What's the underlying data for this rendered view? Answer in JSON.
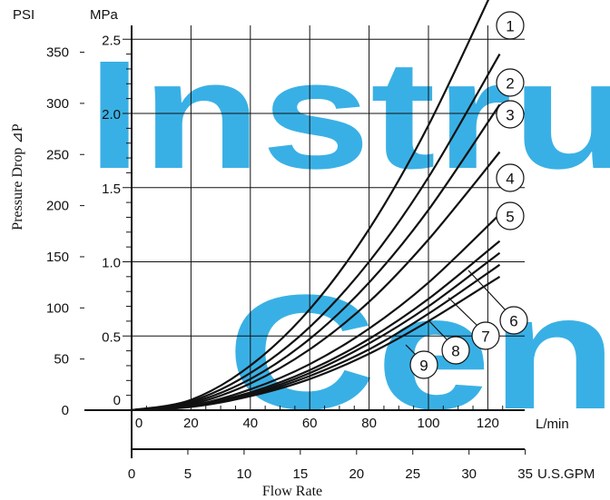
{
  "watermark": {
    "line1": "Instru",
    "line2": "Cen",
    "color": "#29aae3"
  },
  "chart_data": {
    "type": "line",
    "title": "",
    "xlabel": "Flow Rate",
    "ylabel": "Pressure Drop ⊿P",
    "x_primary": {
      "unit": "L/min",
      "ticks": [
        "0",
        "20",
        "40",
        "60",
        "80",
        "100",
        "120"
      ],
      "range": [
        0,
        125
      ]
    },
    "x_secondary": {
      "unit": "U.S.GPM",
      "ticks": [
        "0",
        "5",
        "10",
        "15",
        "20",
        "25",
        "30",
        "35"
      ],
      "range": [
        0,
        35
      ]
    },
    "y_primary": {
      "unit": "PSI",
      "ticks": [
        "0",
        "50",
        "100",
        "150",
        "200",
        "250",
        "300",
        "350"
      ],
      "range": [
        0,
        370
      ]
    },
    "y_secondary": {
      "unit": "MPa",
      "ticks": [
        "0",
        "0.5",
        "1.0",
        "1.5",
        "2.0",
        "2.5"
      ],
      "range": [
        0,
        2.55
      ]
    },
    "grid": true,
    "series": [
      {
        "label": "1",
        "x": [
          0,
          20,
          40,
          60,
          80,
          100,
          124
        ],
        "y_mpa": [
          0,
          0.07,
          0.3,
          0.68,
          1.22,
          1.92,
          2.93
        ]
      },
      {
        "label": "2",
        "x": [
          0,
          20,
          40,
          60,
          80,
          100,
          124
        ],
        "y_mpa": [
          0,
          0.06,
          0.25,
          0.56,
          1.0,
          1.57,
          2.4
        ]
      },
      {
        "label": "3",
        "x": [
          0,
          20,
          40,
          60,
          80,
          100,
          124
        ],
        "y_mpa": [
          0,
          0.05,
          0.21,
          0.48,
          0.86,
          1.35,
          2.06
        ]
      },
      {
        "label": "4",
        "x": [
          0,
          20,
          40,
          60,
          80,
          100,
          124
        ],
        "y_mpa": [
          0,
          0.04,
          0.18,
          0.41,
          0.73,
          1.15,
          1.74
        ]
      },
      {
        "label": "5",
        "x": [
          0,
          20,
          40,
          60,
          80,
          100,
          124
        ],
        "y_mpa": [
          0,
          0.03,
          0.14,
          0.31,
          0.55,
          0.86,
          1.32
        ]
      },
      {
        "label": "6",
        "x": [
          0,
          20,
          40,
          60,
          80,
          100,
          124
        ],
        "y_mpa": [
          0,
          0.03,
          0.12,
          0.27,
          0.48,
          0.75,
          1.14
        ]
      },
      {
        "label": "7",
        "x": [
          0,
          20,
          40,
          60,
          80,
          100,
          124
        ],
        "y_mpa": [
          0,
          0.025,
          0.11,
          0.25,
          0.45,
          0.7,
          1.06
        ]
      },
      {
        "label": "8",
        "x": [
          0,
          20,
          40,
          60,
          80,
          100,
          124
        ],
        "y_mpa": [
          0,
          0.024,
          0.1,
          0.23,
          0.41,
          0.65,
          0.98
        ]
      },
      {
        "label": "9",
        "x": [
          0,
          20,
          40,
          60,
          80,
          100,
          124
        ],
        "y_mpa": [
          0,
          0.022,
          0.094,
          0.21,
          0.38,
          0.6,
          0.9
        ]
      }
    ]
  }
}
